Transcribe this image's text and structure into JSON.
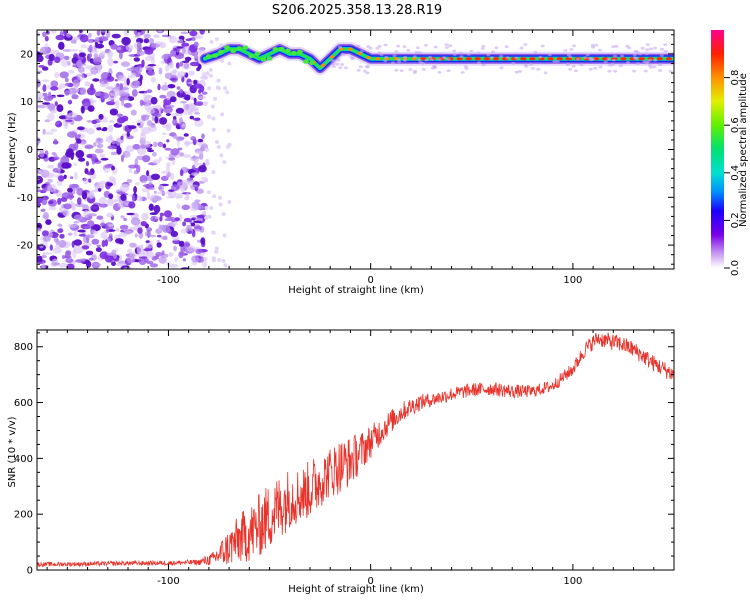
{
  "title": "S206.2025.358.13.28.R19",
  "chart_data": [
    {
      "type": "heatmap",
      "name": "spectrogram",
      "xlabel": "Height of straight line (km)",
      "ylabel": "Frequency (Hz)",
      "xlim": [
        -165,
        150
      ],
      "ylim": [
        -25,
        25
      ],
      "xticks": [
        -100,
        0,
        100
      ],
      "yticks": [
        -20,
        -10,
        0,
        10,
        20
      ],
      "colorbar": {
        "label": "Normalized spectral amplitude",
        "range": [
          0,
          1
        ],
        "ticks": [
          0.0,
          0.2,
          0.4,
          0.6,
          0.8
        ]
      },
      "noise_region_x": [
        -165,
        -82
      ],
      "ridge": {
        "x": [
          -82,
          -75,
          -70,
          -65,
          -60,
          -55,
          -50,
          -45,
          -40,
          -35,
          -30,
          -25,
          -20,
          -15,
          -10,
          -5,
          0,
          10,
          20,
          30,
          40,
          60,
          80,
          100,
          120,
          150
        ],
        "freq": [
          19,
          20,
          21,
          21,
          20,
          19,
          20,
          21,
          20,
          20,
          19,
          17,
          19,
          21,
          21,
          20,
          19,
          19,
          19,
          19,
          19,
          19,
          19,
          19,
          19,
          19
        ]
      }
    },
    {
      "type": "line",
      "name": "snr",
      "xlabel": "Height of straight line (km)",
      "ylabel": "SNR (10 * v/v)",
      "xlim": [
        -165,
        150
      ],
      "ylim": [
        0,
        860
      ],
      "xticks": [
        -100,
        0,
        100
      ],
      "yticks": [
        0,
        200,
        400,
        600,
        800
      ],
      "color": "#e8322a",
      "series": [
        {
          "name": "SNR",
          "x": [
            -165,
            -140,
            -120,
            -100,
            -85,
            -78,
            -72,
            -65,
            -58,
            -52,
            -46,
            -40,
            -34,
            -28,
            -22,
            -16,
            -10,
            -4,
            0,
            8,
            16,
            24,
            30,
            40,
            50,
            60,
            70,
            80,
            90,
            100,
            106,
            112,
            118,
            124,
            130,
            140,
            150
          ],
          "y": [
            20,
            22,
            24,
            25,
            28,
            40,
            70,
            110,
            140,
            180,
            220,
            260,
            270,
            300,
            340,
            370,
            390,
            430,
            460,
            520,
            570,
            600,
            610,
            630,
            645,
            650,
            640,
            640,
            660,
            720,
            790,
            830,
            820,
            810,
            790,
            740,
            700
          ],
          "amp": [
            8,
            8,
            8,
            8,
            10,
            25,
            60,
            90,
            110,
            120,
            120,
            110,
            100,
            110,
            90,
            100,
            90,
            70,
            60,
            45,
            35,
            30,
            25,
            25,
            25,
            25,
            25,
            22,
            22,
            25,
            28,
            28,
            30,
            30,
            30,
            30,
            30
          ]
        }
      ]
    }
  ]
}
